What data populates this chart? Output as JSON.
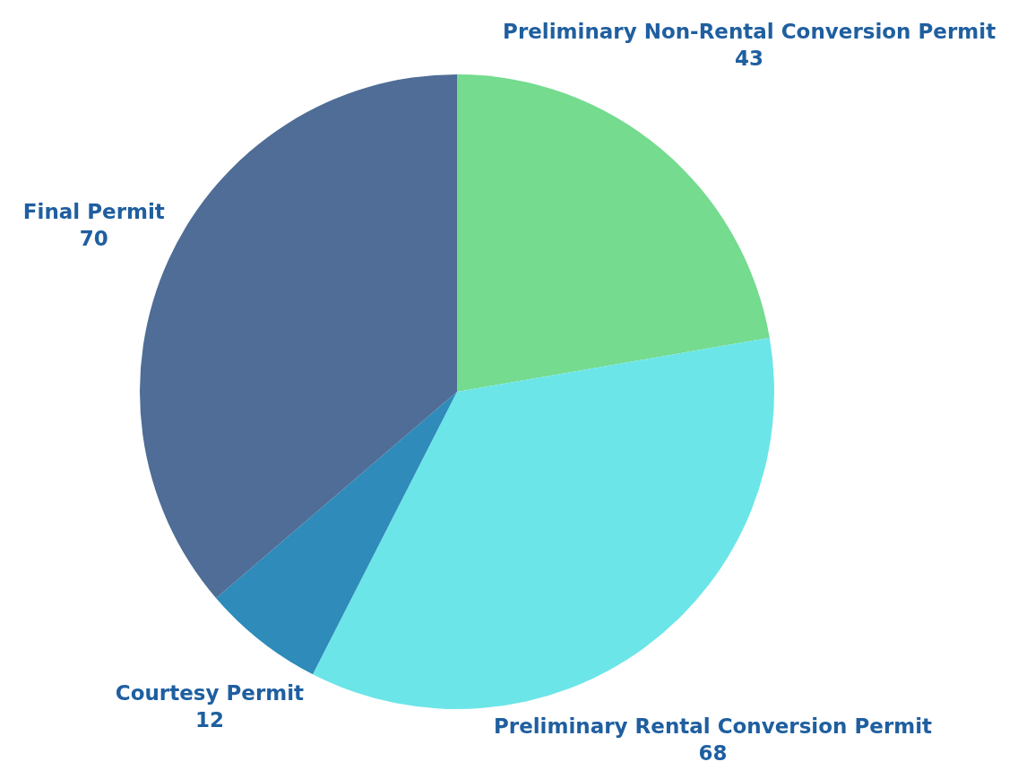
{
  "chart_data": {
    "type": "pie",
    "data_labels": true,
    "categories": [
      "Preliminary Non-Rental Conversion Permit",
      "Preliminary Rental Conversion Permit",
      "Courtesy Permit",
      "Final Permit"
    ],
    "values": [
      43,
      68,
      12,
      70
    ],
    "colors": [
      "#74db8f",
      "#6ce5e8",
      "#2e8bba",
      "#4f6d96"
    ]
  }
}
